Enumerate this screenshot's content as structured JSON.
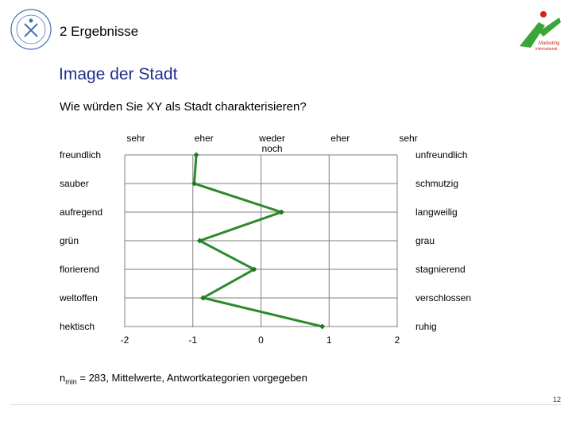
{
  "header": {
    "title": "2 Ergebnisse"
  },
  "slide": {
    "title": "Image der Stadt",
    "question": "Wie würden Sie XY als Stadt charakterisieren?",
    "footnote_prefix": "n",
    "footnote_sub": "min",
    "footnote_text": " = 283, Mittelwerte, Antwortkategorien vorgegeben",
    "page_number": "12"
  },
  "colors": {
    "line": "#2b8a2b",
    "marker": "#1e7a1e",
    "axis": "#7f7f7f",
    "title": "#1f2f8f",
    "logo_green": "#3aa63a",
    "logo_red": "#d42020"
  },
  "logos": {
    "left": "university-seal",
    "right_text_1": "Marketing",
    "right_text_2": "international"
  },
  "chart_data": {
    "type": "line",
    "orientation": "horizontal-profile",
    "scale_labels": [
      "sehr",
      "eher",
      "weder\nnoch",
      "eher",
      "sehr"
    ],
    "x_ticks": [
      -2,
      -1,
      0,
      1,
      2
    ],
    "xlim": [
      -2,
      2
    ],
    "left_labels": [
      "freundlich",
      "sauber",
      "aufregend",
      "grün",
      "florierend",
      "weltoffen",
      "hektisch"
    ],
    "right_labels": [
      "unfreundlich",
      "schmutzig",
      "langweilig",
      "grau",
      "stagnierend",
      "verschlossen",
      "ruhig"
    ],
    "values": [
      -0.95,
      -0.98,
      0.3,
      -0.9,
      -0.1,
      -0.85,
      0.9
    ],
    "grid": true
  }
}
